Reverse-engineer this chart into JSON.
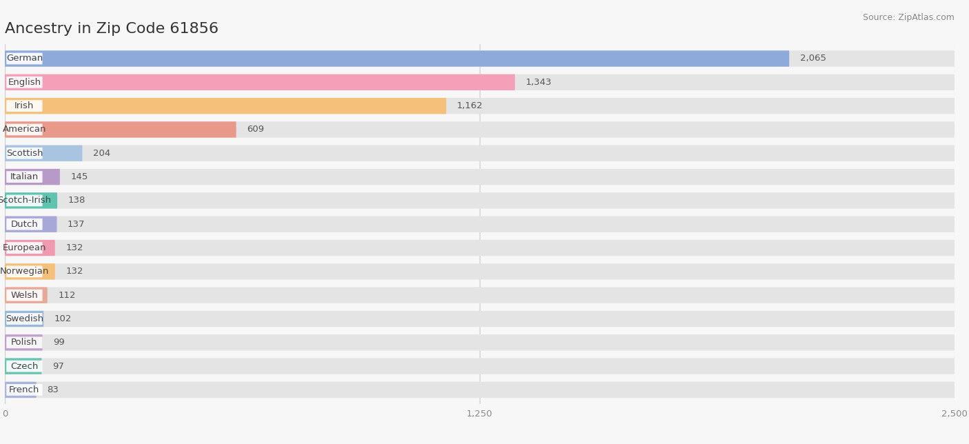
{
  "title": "Ancestry in Zip Code 61856",
  "source": "Source: ZipAtlas.com",
  "categories": [
    "German",
    "English",
    "Irish",
    "American",
    "Scottish",
    "Italian",
    "Scotch-Irish",
    "Dutch",
    "European",
    "Norwegian",
    "Welsh",
    "Swedish",
    "Polish",
    "Czech",
    "French"
  ],
  "values": [
    2065,
    1343,
    1162,
    609,
    204,
    145,
    138,
    137,
    132,
    132,
    112,
    102,
    99,
    97,
    83
  ],
  "bar_colors": [
    "#8eaadb",
    "#f4a0b8",
    "#f5c07a",
    "#e8998a",
    "#a8c4e0",
    "#b89ac8",
    "#5ec4b0",
    "#a8a8d8",
    "#f09ab0",
    "#f5c07a",
    "#e8a898",
    "#98b8d8",
    "#c0a0cc",
    "#68c4b0",
    "#a8b4dc"
  ],
  "background_color": "#f7f7f7",
  "row_bg_color": "#efefef",
  "bar_bg_color": "#e4e4e4",
  "xlim": [
    0,
    2500
  ],
  "xtick_labels": [
    "0",
    "1,250",
    "2,500"
  ],
  "xtick_values": [
    0,
    1250,
    2500
  ],
  "title_fontsize": 16,
  "label_fontsize": 9.5,
  "value_fontsize": 9.5,
  "source_fontsize": 9
}
